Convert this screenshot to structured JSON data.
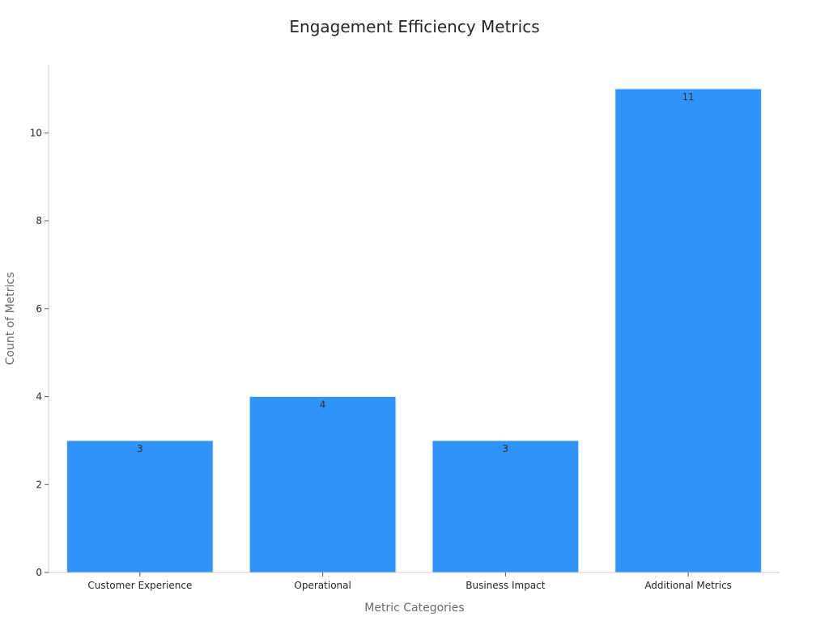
{
  "chart_data": {
    "type": "bar",
    "title": "Engagement Efficiency Metrics",
    "xlabel": "Metric Categories",
    "ylabel": "Count of Metrics",
    "categories": [
      "Customer Experience",
      "Operational",
      "Business Impact",
      "Additional Metrics"
    ],
    "values": [
      3,
      4,
      3,
      11
    ],
    "data_labels": [
      "3",
      "4",
      "3",
      "11"
    ],
    "ylim": [
      0,
      11.55
    ],
    "yticks": [
      0,
      2,
      4,
      6,
      8,
      10
    ],
    "ytick_labels": [
      "0",
      "2",
      "4",
      "6",
      "8",
      "10"
    ],
    "bar_color": "#3093f8",
    "grid": false,
    "legend": "none"
  }
}
